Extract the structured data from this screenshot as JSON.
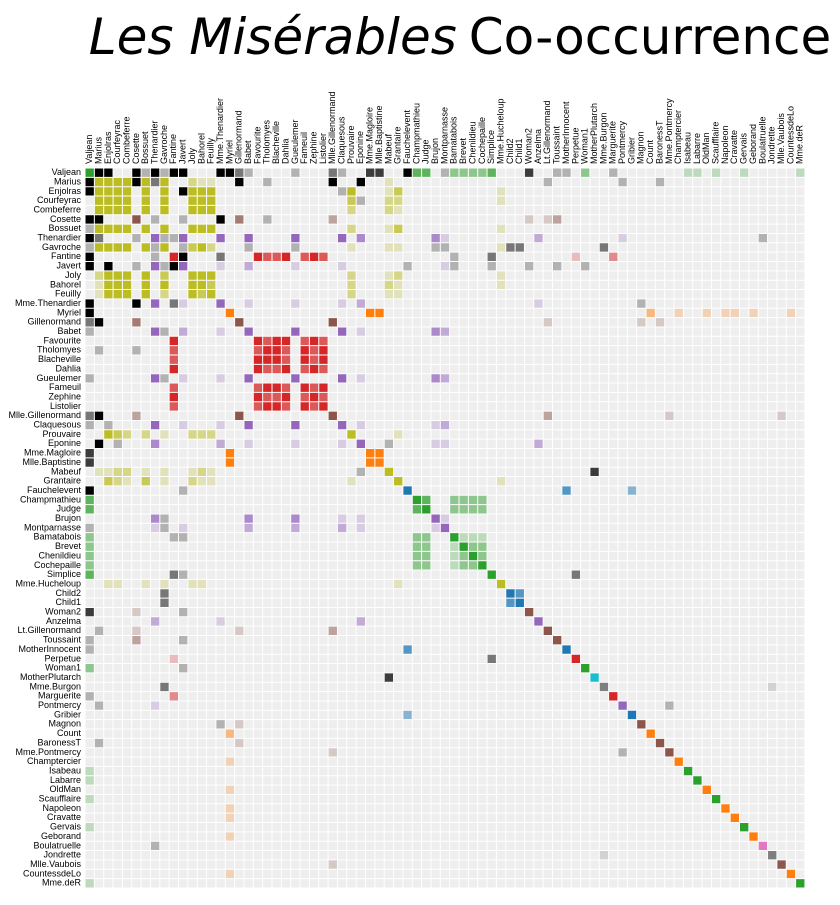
{
  "chart_data": {
    "type": "matrix",
    "title_italic": "Les Misérables",
    "title": "Co-occurrence",
    "palette": [
      "#1f77b4",
      "#ff7f0e",
      "#2ca02c",
      "#d62728",
      "#9467bd",
      "#8c564b",
      "#e377c2",
      "#7f7f7f",
      "#bcbd22",
      "#17becf"
    ],
    "other_color": "#000000",
    "empty_color": "#eeeeee",
    "opacity_domain": [
      0,
      4
    ],
    "nodes": [
      [
        "Myriel",
        1
      ],
      [
        "Napoleon",
        1
      ],
      [
        "Mlle.Baptistine",
        1
      ],
      [
        "Mme.Magloire",
        1
      ],
      [
        "CountessdeLo",
        1
      ],
      [
        "Geborand",
        1
      ],
      [
        "Champtercier",
        1
      ],
      [
        "Cravatte",
        1
      ],
      [
        "Count",
        1
      ],
      [
        "OldMan",
        1
      ],
      [
        "Labarre",
        2
      ],
      [
        "Valjean",
        2
      ],
      [
        "Marguerite",
        3
      ],
      [
        "Mme.deR",
        2
      ],
      [
        "Isabeau",
        2
      ],
      [
        "Gervais",
        2
      ],
      [
        "Tholomyes",
        3
      ],
      [
        "Listolier",
        3
      ],
      [
        "Fameuil",
        3
      ],
      [
        "Blacheville",
        3
      ],
      [
        "Favourite",
        3
      ],
      [
        "Dahlia",
        3
      ],
      [
        "Zephine",
        3
      ],
      [
        "Fantine",
        3
      ],
      [
        "Mme.Thenardier",
        4
      ],
      [
        "Thenardier",
        4
      ],
      [
        "Cosette",
        5
      ],
      [
        "Javert",
        4
      ],
      [
        "Fauchelevent",
        0
      ],
      [
        "Bamatabois",
        2
      ],
      [
        "Perpetue",
        3
      ],
      [
        "Simplice",
        2
      ],
      [
        "Scaufflaire",
        2
      ],
      [
        "Woman1",
        2
      ],
      [
        "Judge",
        2
      ],
      [
        "Champmathieu",
        2
      ],
      [
        "Brevet",
        2
      ],
      [
        "Chenildieu",
        2
      ],
      [
        "Cochepaille",
        2
      ],
      [
        "Pontmercy",
        4
      ],
      [
        "Boulatruelle",
        6
      ],
      [
        "Eponine",
        4
      ],
      [
        "Anzelma",
        4
      ],
      [
        "Woman2",
        5
      ],
      [
        "MotherInnocent",
        0
      ],
      [
        "Gribier",
        0
      ],
      [
        "Jondrette",
        7
      ],
      [
        "Mme.Burgon",
        7
      ],
      [
        "Gavroche",
        8
      ],
      [
        "Gillenormand",
        5
      ],
      [
        "Magnon",
        5
      ],
      [
        "Mlle.Gillenormand",
        5
      ],
      [
        "Mme.Pontmercy",
        5
      ],
      [
        "Mlle.Vaubois",
        5
      ],
      [
        "Lt.Gillenormand",
        5
      ],
      [
        "Marius",
        8
      ],
      [
        "BaronessT",
        5
      ],
      [
        "Mabeuf",
        8
      ],
      [
        "Enjolras",
        8
      ],
      [
        "Combeferre",
        8
      ],
      [
        "Prouvaire",
        8
      ],
      [
        "Feuilly",
        8
      ],
      [
        "Courfeyrac",
        8
      ],
      [
        "Bahorel",
        8
      ],
      [
        "Bossuet",
        8
      ],
      [
        "Joly",
        8
      ],
      [
        "Grantaire",
        8
      ],
      [
        "MotherPlutarch",
        9
      ],
      [
        "Gueulemer",
        4
      ],
      [
        "Babet",
        4
      ],
      [
        "Claquesous",
        4
      ],
      [
        "Montparnasse",
        4
      ],
      [
        "Toussaint",
        5
      ],
      [
        "Child1",
        10
      ],
      [
        "Child2",
        10
      ],
      [
        "Brujon",
        4
      ],
      [
        "Mme.Hucheloup",
        8
      ]
    ],
    "order": [
      11,
      55,
      58,
      62,
      59,
      26,
      64,
      25,
      48,
      23,
      27,
      65,
      63,
      61,
      24,
      0,
      49,
      69,
      20,
      16,
      19,
      21,
      68,
      18,
      22,
      17,
      51,
      70,
      60,
      41,
      3,
      2,
      57,
      66,
      28,
      35,
      34,
      75,
      71,
      29,
      36,
      37,
      38,
      31,
      76,
      74,
      73,
      43,
      42,
      54,
      72,
      44,
      30,
      33,
      67,
      47,
      12,
      39,
      45,
      50,
      8,
      56,
      52,
      6,
      14,
      10,
      9,
      32,
      1,
      7,
      15,
      5,
      40,
      46,
      53,
      4,
      13
    ],
    "links": [
      [
        1,
        0,
        1
      ],
      [
        2,
        0,
        8
      ],
      [
        3,
        0,
        10
      ],
      [
        3,
        2,
        6
      ],
      [
        4,
        0,
        1
      ],
      [
        5,
        0,
        1
      ],
      [
        6,
        0,
        1
      ],
      [
        7,
        0,
        1
      ],
      [
        8,
        0,
        2
      ],
      [
        9,
        0,
        1
      ],
      [
        11,
        10,
        1
      ],
      [
        11,
        3,
        3
      ],
      [
        11,
        2,
        3
      ],
      [
        11,
        0,
        5
      ],
      [
        12,
        11,
        1
      ],
      [
        13,
        11,
        1
      ],
      [
        14,
        11,
        1
      ],
      [
        15,
        11,
        1
      ],
      [
        17,
        16,
        4
      ],
      [
        18,
        16,
        4
      ],
      [
        18,
        17,
        4
      ],
      [
        19,
        16,
        4
      ],
      [
        19,
        17,
        4
      ],
      [
        19,
        18,
        4
      ],
      [
        20,
        16,
        3
      ],
      [
        20,
        17,
        3
      ],
      [
        20,
        18,
        3
      ],
      [
        20,
        19,
        4
      ],
      [
        21,
        16,
        3
      ],
      [
        21,
        17,
        3
      ],
      [
        21,
        18,
        3
      ],
      [
        21,
        19,
        3
      ],
      [
        21,
        20,
        5
      ],
      [
        22,
        16,
        3
      ],
      [
        22,
        17,
        3
      ],
      [
        22,
        18,
        3
      ],
      [
        22,
        19,
        3
      ],
      [
        22,
        20,
        4
      ],
      [
        22,
        21,
        4
      ],
      [
        23,
        16,
        3
      ],
      [
        23,
        17,
        3
      ],
      [
        23,
        18,
        3
      ],
      [
        23,
        19,
        3
      ],
      [
        23,
        20,
        4
      ],
      [
        23,
        21,
        4
      ],
      [
        23,
        22,
        4
      ],
      [
        23,
        12,
        2
      ],
      [
        23,
        11,
        9
      ],
      [
        24,
        23,
        2
      ],
      [
        24,
        11,
        7
      ],
      [
        25,
        24,
        13
      ],
      [
        25,
        23,
        1
      ],
      [
        25,
        11,
        12
      ],
      [
        26,
        24,
        4
      ],
      [
        26,
        11,
        31
      ],
      [
        26,
        16,
        1
      ],
      [
        26,
        25,
        1
      ],
      [
        27,
        11,
        17
      ],
      [
        27,
        23,
        5
      ],
      [
        27,
        25,
        5
      ],
      [
        27,
        24,
        1
      ],
      [
        27,
        26,
        1
      ],
      [
        28,
        11,
        8
      ],
      [
        28,
        27,
        1
      ],
      [
        29,
        23,
        1
      ],
      [
        29,
        27,
        1
      ],
      [
        29,
        11,
        2
      ],
      [
        30,
        23,
        1
      ],
      [
        31,
        30,
        2
      ],
      [
        31,
        11,
        3
      ],
      [
        31,
        23,
        2
      ],
      [
        31,
        27,
        1
      ],
      [
        32,
        11,
        1
      ],
      [
        33,
        11,
        2
      ],
      [
        33,
        27,
        1
      ],
      [
        34,
        11,
        3
      ],
      [
        34,
        29,
        2
      ],
      [
        35,
        11,
        3
      ],
      [
        35,
        34,
        3
      ],
      [
        35,
        29,
        2
      ],
      [
        36,
        34,
        2
      ],
      [
        36,
        35,
        2
      ],
      [
        36,
        11,
        2
      ],
      [
        36,
        29,
        1
      ],
      [
        37,
        34,
        2
      ],
      [
        37,
        35,
        2
      ],
      [
        37,
        36,
        2
      ],
      [
        37,
        11,
        2
      ],
      [
        37,
        29,
        1
      ],
      [
        38,
        34,
        2
      ],
      [
        38,
        35,
        2
      ],
      [
        38,
        36,
        2
      ],
      [
        38,
        37,
        2
      ],
      [
        38,
        11,
        2
      ],
      [
        38,
        29,
        1
      ],
      [
        39,
        25,
        1
      ],
      [
        40,
        25,
        1
      ],
      [
        41,
        24,
        2
      ],
      [
        41,
        25,
        3
      ],
      [
        42,
        41,
        2
      ],
      [
        42,
        25,
        2
      ],
      [
        42,
        24,
        1
      ],
      [
        43,
        11,
        3
      ],
      [
        43,
        26,
        1
      ],
      [
        43,
        27,
        1
      ],
      [
        44,
        28,
        3
      ],
      [
        44,
        11,
        1
      ],
      [
        45,
        28,
        2
      ],
      [
        47,
        46,
        1
      ],
      [
        48,
        47,
        2
      ],
      [
        48,
        25,
        1
      ],
      [
        48,
        27,
        1
      ],
      [
        48,
        11,
        1
      ],
      [
        49,
        26,
        3
      ],
      [
        49,
        11,
        2
      ],
      [
        50,
        49,
        1
      ],
      [
        50,
        24,
        1
      ],
      [
        51,
        49,
        9
      ],
      [
        51,
        26,
        2
      ],
      [
        51,
        11,
        2
      ],
      [
        52,
        51,
        1
      ],
      [
        52,
        39,
        1
      ],
      [
        53,
        51,
        1
      ],
      [
        54,
        51,
        2
      ],
      [
        54,
        49,
        1
      ],
      [
        54,
        26,
        1
      ],
      [
        55,
        51,
        6
      ],
      [
        55,
        49,
        12
      ],
      [
        55,
        39,
        1
      ],
      [
        55,
        54,
        1
      ],
      [
        55,
        26,
        21
      ],
      [
        55,
        11,
        19
      ],
      [
        55,
        16,
        1
      ],
      [
        55,
        25,
        2
      ],
      [
        55,
        41,
        5
      ],
      [
        55,
        48,
        4
      ],
      [
        56,
        49,
        1
      ],
      [
        56,
        55,
        1
      ],
      [
        57,
        55,
        1
      ],
      [
        57,
        41,
        1
      ],
      [
        57,
        48,
        1
      ],
      [
        58,
        55,
        7
      ],
      [
        58,
        48,
        7
      ],
      [
        58,
        27,
        6
      ],
      [
        58,
        57,
        1
      ],
      [
        58,
        11,
        4
      ],
      [
        59,
        58,
        15
      ],
      [
        59,
        55,
        5
      ],
      [
        59,
        48,
        6
      ],
      [
        59,
        57,
        2
      ],
      [
        60,
        48,
        1
      ],
      [
        60,
        58,
        4
      ],
      [
        60,
        59,
        2
      ],
      [
        61,
        48,
        2
      ],
      [
        61,
        58,
        6
      ],
      [
        61,
        60,
        2
      ],
      [
        61,
        59,
        5
      ],
      [
        61,
        57,
        1
      ],
      [
        61,
        55,
        1
      ],
      [
        62,
        55,
        9
      ],
      [
        62,
        58,
        17
      ],
      [
        62,
        59,
        13
      ],
      [
        62,
        48,
        7
      ],
      [
        62,
        57,
        2
      ],
      [
        62,
        41,
        1
      ],
      [
        62,
        61,
        6
      ],
      [
        62,
        60,
        3
      ],
      [
        63,
        59,
        5
      ],
      [
        63,
        48,
        5
      ],
      [
        63,
        62,
        6
      ],
      [
        63,
        57,
        2
      ],
      [
        63,
        58,
        4
      ],
      [
        63,
        61,
        3
      ],
      [
        63,
        60,
        2
      ],
      [
        63,
        55,
        1
      ],
      [
        64,
        55,
        5
      ],
      [
        64,
        62,
        12
      ],
      [
        64,
        48,
        5
      ],
      [
        64,
        63,
        4
      ],
      [
        64,
        58,
        10
      ],
      [
        64,
        61,
        6
      ],
      [
        64,
        60,
        2
      ],
      [
        64,
        59,
        9
      ],
      [
        64,
        57,
        1
      ],
      [
        64,
        11,
        1
      ],
      [
        65,
        63,
        5
      ],
      [
        65,
        64,
        7
      ],
      [
        65,
        48,
        3
      ],
      [
        65,
        62,
        5
      ],
      [
        65,
        58,
        5
      ],
      [
        65,
        61,
        5
      ],
      [
        65,
        60,
        2
      ],
      [
        65,
        59,
        5
      ],
      [
        65,
        57,
        1
      ],
      [
        65,
        55,
        2
      ],
      [
        66,
        64,
        3
      ],
      [
        66,
        58,
        3
      ],
      [
        66,
        59,
        1
      ],
      [
        66,
        62,
        2
      ],
      [
        66,
        65,
        2
      ],
      [
        66,
        48,
        1
      ],
      [
        66,
        63,
        1
      ],
      [
        66,
        61,
        1
      ],
      [
        66,
        60,
        1
      ],
      [
        67,
        57,
        3
      ],
      [
        68,
        25,
        5
      ],
      [
        68,
        11,
        1
      ],
      [
        68,
        24,
        1
      ],
      [
        68,
        27,
        1
      ],
      [
        68,
        48,
        1
      ],
      [
        68,
        41,
        1
      ],
      [
        69,
        25,
        6
      ],
      [
        69,
        68,
        6
      ],
      [
        69,
        11,
        1
      ],
      [
        69,
        24,
        1
      ],
      [
        69,
        27,
        2
      ],
      [
        69,
        48,
        1
      ],
      [
        69,
        41,
        1
      ],
      [
        70,
        25,
        4
      ],
      [
        70,
        69,
        4
      ],
      [
        70,
        68,
        4
      ],
      [
        70,
        11,
        1
      ],
      [
        70,
        24,
        1
      ],
      [
        70,
        27,
        1
      ],
      [
        70,
        41,
        1
      ],
      [
        70,
        58,
        1
      ],
      [
        71,
        27,
        1
      ],
      [
        71,
        69,
        2
      ],
      [
        71,
        68,
        2
      ],
      [
        71,
        70,
        2
      ],
      [
        71,
        11,
        1
      ],
      [
        71,
        48,
        1
      ],
      [
        71,
        41,
        1
      ],
      [
        71,
        25,
        1
      ],
      [
        72,
        26,
        2
      ],
      [
        72,
        27,
        1
      ],
      [
        72,
        11,
        1
      ],
      [
        73,
        48,
        2
      ],
      [
        74,
        48,
        2
      ],
      [
        74,
        73,
        3
      ],
      [
        75,
        69,
        3
      ],
      [
        75,
        68,
        3
      ],
      [
        75,
        25,
        3
      ],
      [
        75,
        48,
        1
      ],
      [
        75,
        41,
        1
      ],
      [
        75,
        70,
        1
      ],
      [
        75,
        71,
        1
      ],
      [
        76,
        64,
        1
      ],
      [
        76,
        65,
        1
      ],
      [
        76,
        66,
        1
      ],
      [
        76,
        63,
        1
      ],
      [
        76,
        62,
        1
      ],
      [
        76,
        48,
        1
      ],
      [
        76,
        58,
        1
      ]
    ]
  }
}
